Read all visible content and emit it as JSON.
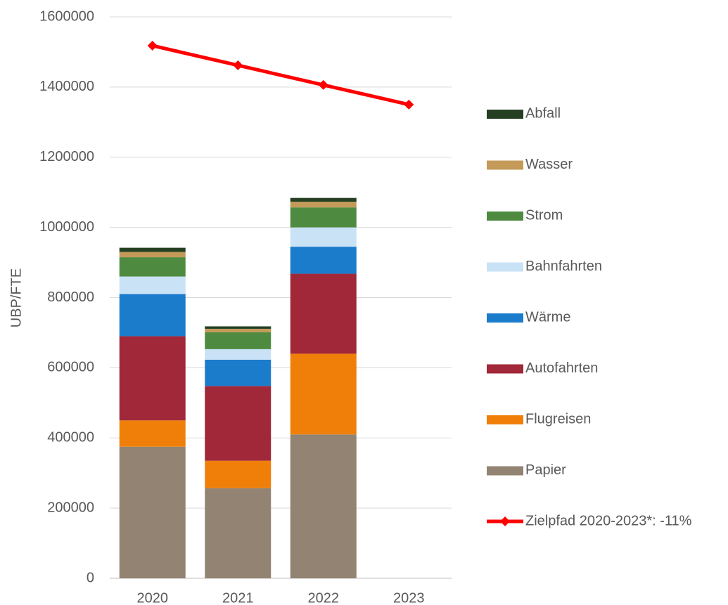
{
  "chart_data": {
    "type": "bar",
    "stacked": true,
    "title": "",
    "xlabel": "",
    "ylabel": "UBP/FTE",
    "ylim": [
      0,
      1600000
    ],
    "yticks": [
      0,
      200000,
      400000,
      600000,
      800000,
      1000000,
      1200000,
      1400000,
      1600000
    ],
    "ytick_labels": [
      "0",
      "200000",
      "400000",
      "600000",
      "800000",
      "1000000",
      "1200000",
      "1400000",
      "1600000"
    ],
    "grid": true,
    "legend_position": "right",
    "categories": [
      "2020",
      "2021",
      "2022",
      "2023"
    ],
    "series": [
      {
        "name": "Papier",
        "type": "bar",
        "color": "#938372",
        "values": [
          375000,
          257000,
          410000,
          null
        ]
      },
      {
        "name": "Flugreisen",
        "type": "bar",
        "color": "#f07f09",
        "values": [
          75000,
          78000,
          230000,
          null
        ]
      },
      {
        "name": "Autofahrten",
        "type": "bar",
        "color": "#a02838",
        "values": [
          240000,
          213000,
          228000,
          null
        ]
      },
      {
        "name": "Wärme",
        "type": "bar",
        "color": "#1b7ccc",
        "values": [
          120000,
          75000,
          77000,
          null
        ]
      },
      {
        "name": "Bahnfahrten",
        "type": "bar",
        "color": "#c9e2f6",
        "values": [
          50000,
          30000,
          55000,
          null
        ]
      },
      {
        "name": "Strom",
        "type": "bar",
        "color": "#4e8b41",
        "values": [
          55000,
          48000,
          57000,
          null
        ]
      },
      {
        "name": "Wasser",
        "type": "bar",
        "color": "#c49a59",
        "values": [
          15000,
          10000,
          16000,
          null
        ]
      },
      {
        "name": "Abfall",
        "type": "bar",
        "color": "#253f23",
        "values": [
          12000,
          7000,
          11000,
          null
        ]
      },
      {
        "name": "Zielpfad 2020-2023*: -11%",
        "type": "line",
        "color": "#ff0000",
        "values": [
          1518000,
          1462000,
          1406000,
          1350000
        ]
      }
    ]
  }
}
